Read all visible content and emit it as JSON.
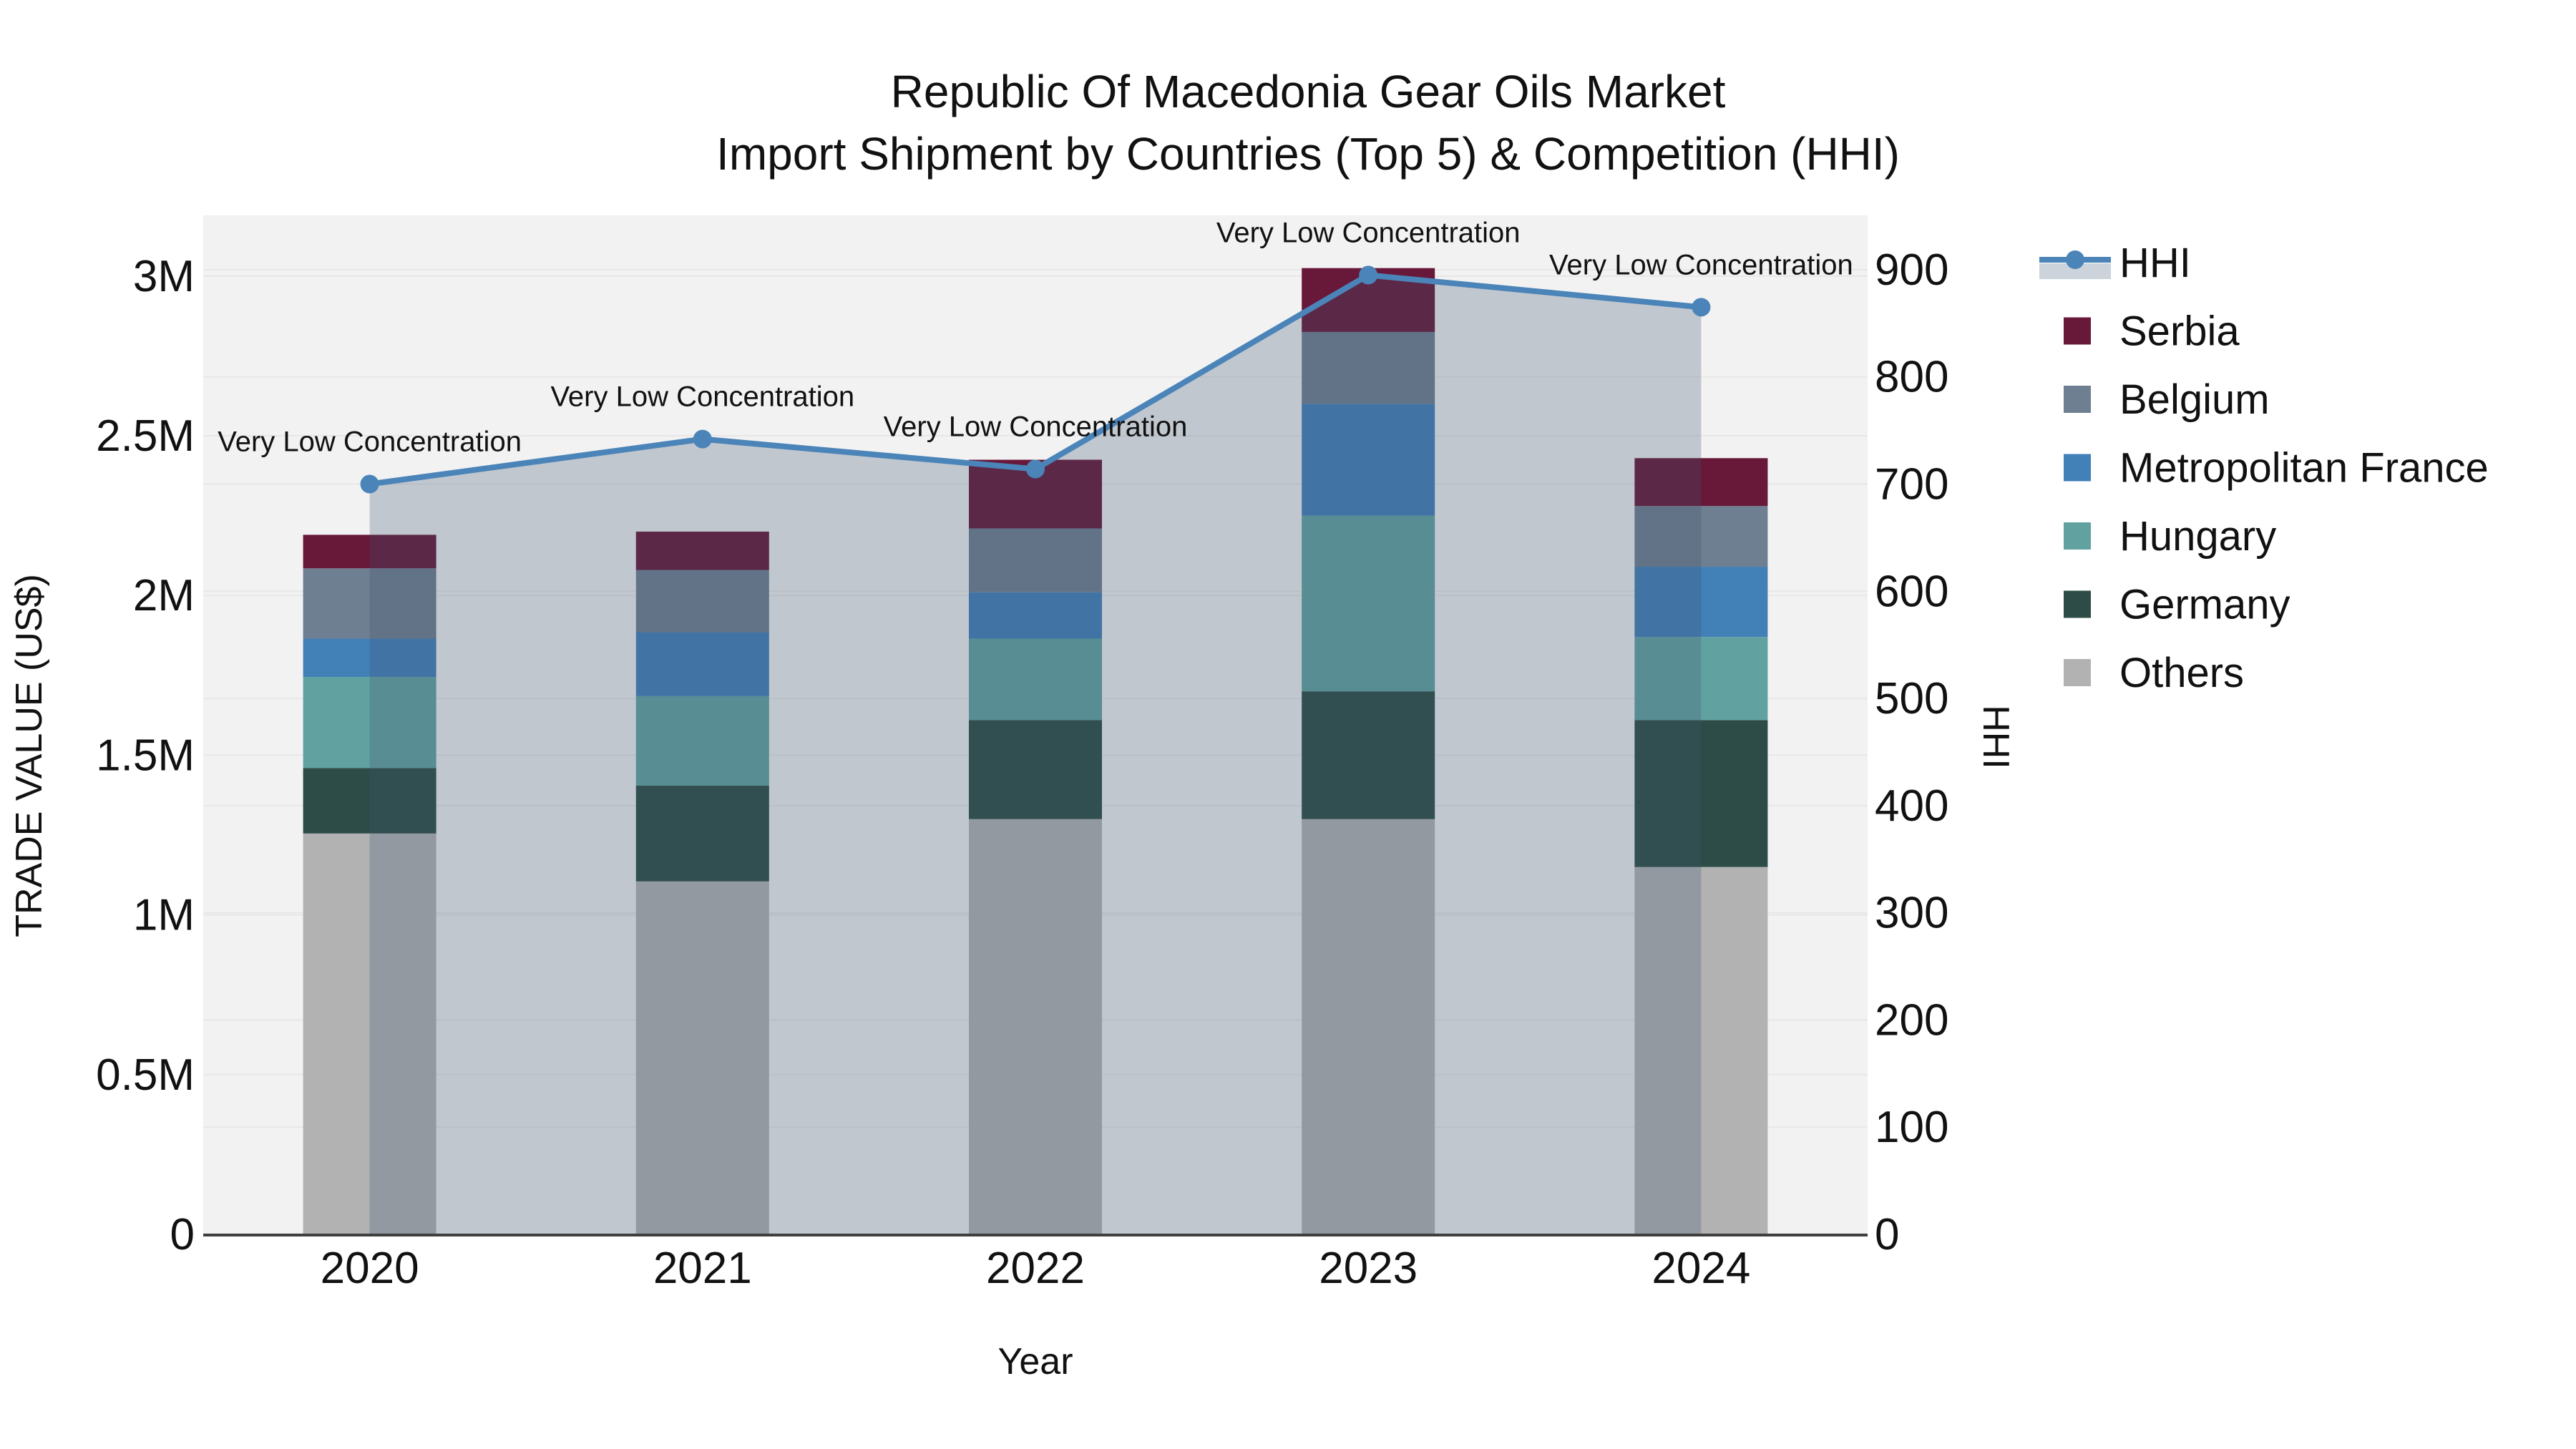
{
  "title": {
    "line1": "Republic Of Macedonia Gear Oils Market",
    "line2": "Import Shipment by Countries (Top 5) & Competition (HHI)"
  },
  "chart_data": {
    "type": "bar",
    "subtype": "stacked-bars-with-line-overlay",
    "categories": [
      "2020",
      "2021",
      "2022",
      "2023",
      "2024"
    ],
    "series": [
      {
        "name": "Others",
        "color": "#b2b2b2",
        "values": [
          1255000,
          1105000,
          1300000,
          1300000,
          1150000
        ]
      },
      {
        "name": "Germany",
        "color": "#2d4c47",
        "values": [
          205000,
          300000,
          310000,
          400000,
          460000
        ]
      },
      {
        "name": "Hungary",
        "color": "#61a2a1",
        "values": [
          285000,
          280000,
          255000,
          550000,
          260000
        ]
      },
      {
        "name": "Metropolitan France",
        "color": "#4280b8",
        "values": [
          120000,
          200000,
          145000,
          350000,
          220000
        ]
      },
      {
        "name": "Belgium",
        "color": "#6f7f92",
        "values": [
          220000,
          195000,
          200000,
          225000,
          190000
        ]
      },
      {
        "name": "Serbia",
        "color": "#681839",
        "values": [
          105000,
          120000,
          215000,
          200000,
          150000
        ]
      }
    ],
    "line_series": {
      "name": "HHI",
      "values": [
        700,
        742,
        714,
        895,
        865
      ],
      "line_color": "#4a84b8",
      "area_fill": "rgba(62,84,110,0.27)",
      "legend_band_color": "#ccd3da"
    },
    "annotations": [
      {
        "category": "2020",
        "text": "Very Low Concentration"
      },
      {
        "category": "2021",
        "text": "Very Low Concentration"
      },
      {
        "category": "2022",
        "text": "Very Low Concentration"
      },
      {
        "category": "2023",
        "text": "Very Low Concentration"
      },
      {
        "category": "2024",
        "text": "Very Low Concentration"
      }
    ],
    "y_left": {
      "label": "TRADE VALUE (US$)",
      "range": [
        0,
        3190000
      ],
      "ticks": [
        {
          "label": "0",
          "value": 0
        },
        {
          "label": "0.5M",
          "value": 500000
        },
        {
          "label": "1M",
          "value": 1000000
        },
        {
          "label": "1.5M",
          "value": 1500000
        },
        {
          "label": "2M",
          "value": 2000000
        },
        {
          "label": "2.5M",
          "value": 2500000
        },
        {
          "label": "3M",
          "value": 3000000
        }
      ]
    },
    "y_right": {
      "label": "HHI",
      "range": [
        0,
        950.7
      ],
      "ticks": [
        {
          "label": "0",
          "value": 0
        },
        {
          "label": "100",
          "value": 100
        },
        {
          "label": "200",
          "value": 200
        },
        {
          "label": "300",
          "value": 300
        },
        {
          "label": "400",
          "value": 400
        },
        {
          "label": "500",
          "value": 500
        },
        {
          "label": "600",
          "value": 600
        },
        {
          "label": "700",
          "value": 700
        },
        {
          "label": "800",
          "value": 800
        },
        {
          "label": "900",
          "value": 900
        }
      ]
    },
    "x": {
      "label": "Year"
    },
    "legend": [
      {
        "label": "HHI",
        "type": "line",
        "color": "#4a84b8"
      },
      {
        "label": "Serbia",
        "type": "swatch",
        "color": "#681839"
      },
      {
        "label": "Belgium",
        "type": "swatch",
        "color": "#6f7f92"
      },
      {
        "label": "Metropolitan France",
        "type": "swatch",
        "color": "#4280b8"
      },
      {
        "label": "Hungary",
        "type": "swatch",
        "color": "#61a2a1"
      },
      {
        "label": "Germany",
        "type": "swatch",
        "color": "#2d4c47"
      },
      {
        "label": "Others",
        "type": "swatch",
        "color": "#b2b2b2"
      }
    ],
    "style": {
      "plot_bg": "#f2f2f2",
      "gridline_color": "#e7e7e7",
      "axis_line_color": "#3f3f3f",
      "text_color": "#111111"
    }
  }
}
